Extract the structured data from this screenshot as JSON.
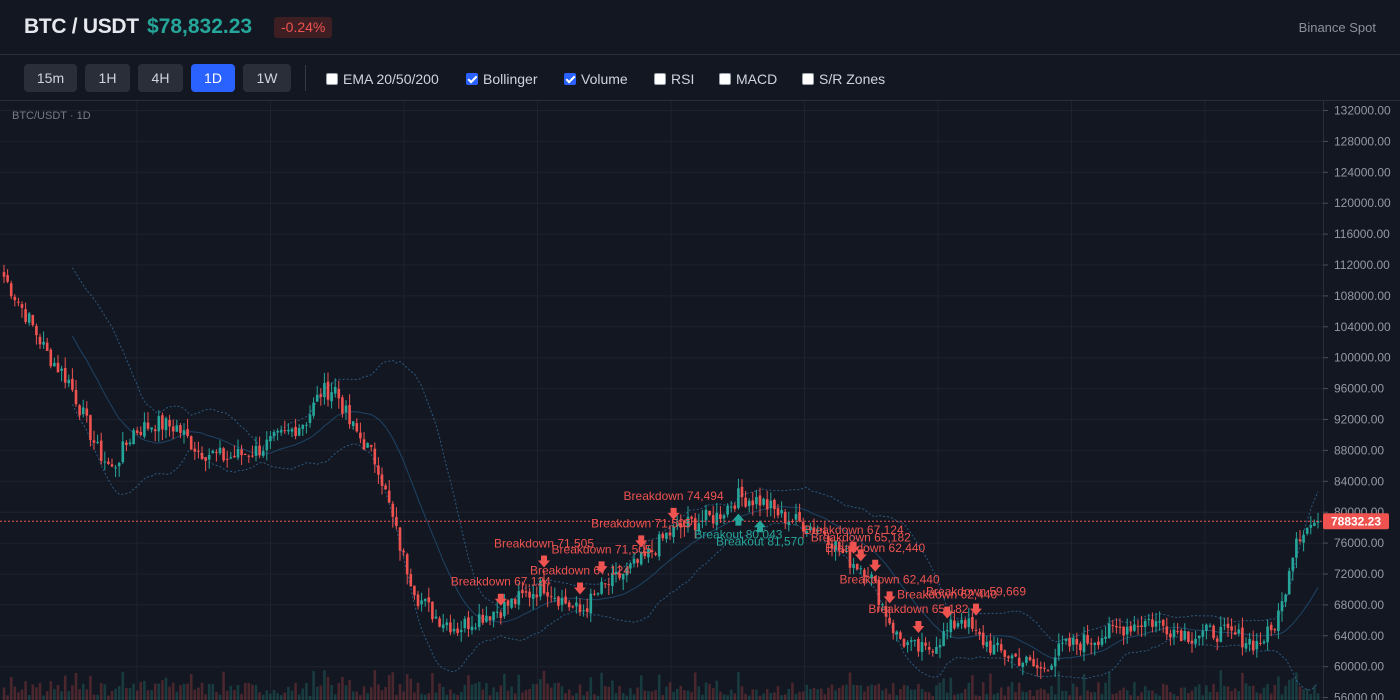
{
  "header": {
    "pair": "BTC / USDT",
    "price": "$78,832.23",
    "change": "-0.24%",
    "exchange": "Binance Spot"
  },
  "toolbar": {
    "timeframes": [
      "15m",
      "1H",
      "4H",
      "1D",
      "1W"
    ],
    "active_timeframe": "1D",
    "indicators": [
      {
        "label": "EMA 20/50/200",
        "checked": false
      },
      {
        "label": "Bollinger",
        "checked": true
      },
      {
        "label": "Volume",
        "checked": true
      },
      {
        "label": "RSI",
        "checked": false
      },
      {
        "label": "MACD",
        "checked": false
      },
      {
        "label": "S/R Zones",
        "checked": false
      }
    ]
  },
  "chart": {
    "label": "BTC/USDT · 1D",
    "last_price_label": "78832.23",
    "last_price": 78832.23,
    "y_axis_ticks": [
      "132000.00",
      "128000.00",
      "124000.00",
      "120000.00",
      "116000.00",
      "112000.00",
      "108000.00",
      "104000.00",
      "100000.00",
      "96000.00",
      "92000.00",
      "88000.00",
      "84000.00",
      "80000.00",
      "76000.00",
      "72000.00",
      "68000.00",
      "64000.00",
      "60000.00",
      "56000.00"
    ],
    "colors": {
      "up": "#26a69a",
      "down": "#ef5350",
      "band": "#2c5a80",
      "grid": "#1e222d",
      "accent": "#2962ff"
    }
  },
  "chart_data": {
    "type": "candlestick",
    "ylim": [
      54000,
      133000
    ],
    "close_anchors": [
      [
        0,
        110500
      ],
      [
        8,
        104000
      ],
      [
        12,
        100500
      ],
      [
        18,
        97000
      ],
      [
        26,
        88000
      ],
      [
        30,
        85500
      ],
      [
        36,
        90500
      ],
      [
        42,
        91500
      ],
      [
        48,
        91000
      ],
      [
        54,
        88000
      ],
      [
        62,
        87000
      ],
      [
        70,
        88000
      ],
      [
        78,
        90000
      ],
      [
        84,
        92000
      ],
      [
        88,
        95500
      ],
      [
        92,
        96000
      ],
      [
        96,
        91500
      ],
      [
        100,
        89000
      ],
      [
        104,
        86000
      ],
      [
        108,
        79000
      ],
      [
        111,
        74000
      ],
      [
        115,
        69000
      ],
      [
        120,
        66500
      ],
      [
        126,
        65000
      ],
      [
        132,
        66500
      ],
      [
        138,
        67500
      ],
      [
        144,
        69000
      ],
      [
        150,
        70500
      ],
      [
        154,
        69000
      ],
      [
        160,
        67000
      ],
      [
        166,
        70000
      ],
      [
        172,
        72000
      ],
      [
        178,
        74000
      ],
      [
        184,
        77000
      ],
      [
        190,
        78500
      ],
      [
        198,
        79500
      ],
      [
        204,
        82000
      ],
      [
        210,
        81500
      ],
      [
        216,
        79500
      ],
      [
        222,
        78500
      ],
      [
        228,
        77500
      ],
      [
        234,
        74000
      ],
      [
        240,
        72500
      ],
      [
        244,
        68000
      ],
      [
        248,
        64000
      ],
      [
        252,
        62500
      ],
      [
        256,
        62000
      ],
      [
        262,
        64500
      ],
      [
        266,
        66500
      ],
      [
        270,
        64000
      ],
      [
        276,
        62000
      ],
      [
        282,
        61000
      ],
      [
        288,
        59500
      ],
      [
        294,
        62500
      ],
      [
        302,
        63500
      ],
      [
        310,
        65000
      ],
      [
        318,
        66000
      ],
      [
        324,
        65000
      ],
      [
        330,
        64000
      ],
      [
        336,
        64500
      ],
      [
        342,
        64000
      ],
      [
        348,
        63000
      ],
      [
        352,
        64500
      ],
      [
        355,
        68000
      ],
      [
        357,
        73000
      ],
      [
        359,
        77000
      ],
      [
        362,
        78000
      ],
      [
        365,
        78832
      ]
    ],
    "markers": [
      {
        "index": 150,
        "label": "Breakdown 71,505",
        "type": "breakdown"
      },
      {
        "index": 138,
        "label": "Breakdown 67,124",
        "type": "breakdown"
      },
      {
        "index": 160,
        "label": "Breakdown 67,124",
        "type": "breakdown"
      },
      {
        "index": 166,
        "label": "Breakdown 71,505",
        "type": "breakdown"
      },
      {
        "index": 177,
        "label": "Breakdown 71,505",
        "type": "breakdown"
      },
      {
        "index": 186,
        "label": "Breakdown 74,494",
        "type": "breakdown"
      },
      {
        "index": 204,
        "label": "Breakout 80,043",
        "type": "breakout"
      },
      {
        "index": 210,
        "label": "Breakout 81,570",
        "type": "breakout"
      },
      {
        "index": 236,
        "label": "Breakdown 67,124",
        "type": "breakdown"
      },
      {
        "index": 238,
        "label": "Breakdown 65,182",
        "type": "breakdown"
      },
      {
        "index": 242,
        "label": "Breakdown 62,440",
        "type": "breakdown"
      },
      {
        "index": 246,
        "label": "Breakdown 62,440",
        "type": "breakdown"
      },
      {
        "index": 254,
        "label": "Breakdown 65,182",
        "type": "breakdown"
      },
      {
        "index": 262,
        "label": "Breakdown 62,440",
        "type": "breakdown"
      },
      {
        "index": 270,
        "label": "Breakdown 59,669",
        "type": "breakdown"
      }
    ]
  }
}
